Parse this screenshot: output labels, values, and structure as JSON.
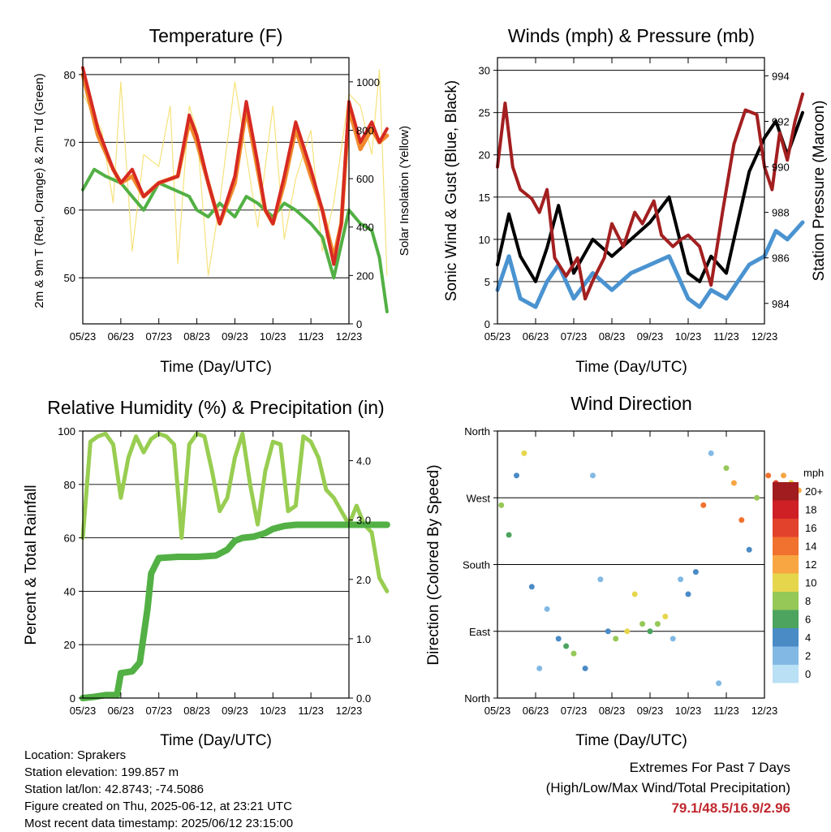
{
  "chart_data": [
    {
      "type": "line",
      "title": "Temperature (F)",
      "xlabel": "Time (Day/UTC)",
      "ylabel": "2m & 9m T (Red, Orange) & 2m Td (Green)",
      "ylabel_right": "Solar Insolation (Yellow)",
      "xticks": [
        "05/23",
        "06/23",
        "07/23",
        "08/23",
        "09/23",
        "10/23",
        "11/23",
        "12/23"
      ],
      "yticks": [
        50,
        60,
        70,
        80
      ],
      "yticks_right": [
        0,
        200,
        400,
        600,
        800,
        1000
      ],
      "ylim": [
        43.2,
        82.5
      ],
      "ylim_right": [
        0,
        1100
      ],
      "series": [
        {
          "color": "#d62a22",
          "x": [
            0,
            0.4,
            0.8,
            1,
            1.3,
            1.6,
            2,
            2.5,
            2.8,
            3,
            3.3,
            3.6,
            4,
            4.3,
            4.6,
            4.8,
            5,
            5.3,
            5.6,
            6,
            6.3,
            6.6,
            6.8,
            7,
            7.3,
            7.6,
            7.8,
            8
          ],
          "values": [
            81,
            72,
            66,
            64,
            66,
            62,
            64,
            65,
            74,
            71,
            64,
            58,
            65,
            76,
            67,
            60,
            58,
            65,
            73,
            66,
            60,
            52,
            58,
            76,
            70,
            73,
            70,
            72
          ]
        },
        {
          "color": "#f08a2b",
          "x": [
            0,
            0.4,
            0.8,
            1,
            1.3,
            1.6,
            2,
            2.5,
            2.8,
            3,
            3.3,
            3.6,
            4,
            4.3,
            4.6,
            4.8,
            5,
            5.3,
            5.6,
            6,
            6.3,
            6.6,
            6.8,
            7,
            7.3,
            7.6,
            7.8,
            8
          ],
          "values": [
            80,
            71,
            66,
            64,
            65,
            62,
            64,
            65,
            73,
            70,
            64,
            58,
            64,
            75,
            66,
            60,
            58,
            64,
            72,
            65,
            60,
            53,
            58,
            75,
            69,
            72,
            70,
            71
          ]
        },
        {
          "color": "#52b044",
          "x": [
            0,
            0.3,
            0.6,
            1,
            1.3,
            1.6,
            2,
            2.4,
            2.8,
            3,
            3.3,
            3.6,
            4,
            4.3,
            4.6,
            5,
            5.3,
            5.6,
            6,
            6.3,
            6.6,
            7,
            7.3,
            7.6,
            7.8,
            8
          ],
          "values": [
            63,
            66,
            65,
            64,
            62,
            60,
            64,
            63,
            62,
            60,
            59,
            61,
            59,
            62,
            61,
            59,
            61,
            60,
            58,
            56,
            50,
            60,
            58,
            57,
            53,
            45
          ]
        }
      ],
      "insolation": [
        {
          "x": [
            0,
            0.5,
            0.8,
            1,
            1.3,
            1.6,
            2,
            2.3,
            2.5,
            2.8,
            3,
            3.3,
            3.6,
            4,
            4.3,
            4.6,
            5,
            5.3,
            5.6,
            6,
            6.3,
            6.6,
            7,
            7.3,
            7.6,
            7.8,
            8
          ],
          "values": [
            950,
            800,
            500,
            1000,
            300,
            700,
            650,
            900,
            250,
            900,
            800,
            200,
            500,
            1000,
            700,
            400,
            900,
            350,
            600,
            800,
            300,
            500,
            950,
            900,
            700,
            1050,
            200
          ]
        }
      ]
    },
    {
      "type": "line",
      "title": "Winds (mph) & Pressure (mb)",
      "xlabel": "Time (Day/UTC)",
      "ylabel": "Sonic Wind & Gust (Blue, Black)",
      "ylabel_right": "Station Pressure (Maroon)",
      "xticks": [
        "05/23",
        "06/23",
        "07/23",
        "08/23",
        "09/23",
        "10/23",
        "11/23",
        "12/23"
      ],
      "yticks": [
        0,
        5,
        10,
        15,
        20,
        25,
        30
      ],
      "yticks_right": [
        984,
        986,
        988,
        990,
        992,
        994
      ],
      "ylim": [
        0,
        31.5
      ],
      "ylim_right": [
        983.1,
        994.8
      ],
      "series": [
        {
          "name": "Wind",
          "color": "#4a93d0",
          "x": [
            0,
            0.3,
            0.6,
            1,
            1.3,
            1.6,
            2,
            2.5,
            3,
            3.5,
            4,
            4.5,
            5,
            5.3,
            5.6,
            6,
            6.3,
            6.6,
            7,
            7.3,
            7.6,
            8
          ],
          "values": [
            4,
            8,
            3,
            2,
            5,
            7,
            3,
            6,
            4,
            6,
            7,
            8,
            3,
            2,
            4,
            3,
            5,
            7,
            8,
            11,
            10,
            12
          ]
        },
        {
          "name": "Gust",
          "color": "#000000",
          "x": [
            0,
            0.3,
            0.6,
            1,
            1.3,
            1.6,
            2,
            2.5,
            3,
            3.5,
            4,
            4.5,
            5,
            5.3,
            5.6,
            6,
            6.3,
            6.6,
            7,
            7.3,
            7.6,
            8
          ],
          "values": [
            7,
            13,
            8,
            5,
            9,
            14,
            6,
            10,
            8,
            10,
            12,
            15,
            6,
            5,
            8,
            6,
            12,
            18,
            22,
            24,
            20,
            25
          ]
        },
        {
          "name": "Pressure",
          "color": "#a31f20",
          "axis": "right",
          "x": [
            0,
            0.2,
            0.4,
            0.6,
            0.9,
            1.1,
            1.3,
            1.5,
            1.8,
            2.1,
            2.3,
            2.5,
            2.8,
            3,
            3.3,
            3.6,
            3.8,
            4.1,
            4.3,
            4.6,
            4.8,
            5,
            5.3,
            5.6,
            5.9,
            6.2,
            6.5,
            6.8,
            7,
            7.2,
            7.4,
            7.6,
            7.8,
            8
          ],
          "values": [
            990,
            992.8,
            990,
            989,
            988.6,
            988,
            989,
            986,
            985.2,
            986,
            984.2,
            985,
            986,
            987.5,
            986.5,
            988,
            987.5,
            988.5,
            987,
            986.5,
            986.8,
            987,
            986.5,
            984.8,
            988,
            991,
            992.5,
            992.3,
            990,
            989,
            991.5,
            990.3,
            992,
            993.2
          ]
        }
      ]
    },
    {
      "type": "line",
      "title": "Relative Humidity (%) & Precipitation (in)",
      "xlabel": "Time (Day/UTC)",
      "ylabel": "Percent & Total Rainfall",
      "xticks": [
        "05/23",
        "06/23",
        "07/23",
        "08/23",
        "09/23",
        "10/23",
        "11/23",
        "12/23"
      ],
      "yticks": [
        0,
        20,
        40,
        60,
        80,
        100
      ],
      "yticks_right": [
        "0.0",
        "1.0",
        "2.0",
        "3.0",
        "4.0"
      ],
      "ylim": [
        0,
        100
      ],
      "ylim_right": [
        0,
        4.5
      ],
      "series": [
        {
          "name": "RH",
          "color": "#98cd51",
          "x": [
            0,
            0.2,
            0.4,
            0.6,
            0.8,
            1,
            1.2,
            1.4,
            1.6,
            1.8,
            2,
            2.2,
            2.4,
            2.6,
            2.8,
            3,
            3.2,
            3.4,
            3.6,
            3.8,
            4,
            4.2,
            4.4,
            4.6,
            4.8,
            5,
            5.2,
            5.4,
            5.6,
            5.8,
            6,
            6.2,
            6.4,
            6.6,
            6.8,
            7,
            7.2,
            7.4,
            7.6,
            7.8,
            8
          ],
          "values": [
            60,
            96,
            98,
            99,
            95,
            75,
            90,
            98,
            92,
            97,
            99,
            98,
            95,
            60,
            95,
            99,
            98,
            85,
            70,
            75,
            90,
            99,
            80,
            65,
            85,
            96,
            95,
            70,
            72,
            98,
            96,
            90,
            78,
            75,
            70,
            65,
            72,
            65,
            62,
            45,
            40
          ]
        },
        {
          "name": "Precip",
          "color": "#52b044",
          "axis": "right",
          "x": [
            0,
            0.3,
            0.6,
            0.9,
            1,
            1.3,
            1.5,
            1.7,
            1.8,
            2,
            2.5,
            3,
            3.5,
            3.8,
            4,
            4.2,
            4.5,
            4.8,
            5,
            5.3,
            5.6,
            6,
            6.5,
            7,
            7.5,
            8
          ],
          "values": [
            0,
            0.02,
            0.05,
            0.05,
            0.42,
            0.45,
            0.6,
            1.5,
            2.1,
            2.36,
            2.38,
            2.38,
            2.4,
            2.5,
            2.65,
            2.7,
            2.72,
            2.78,
            2.85,
            2.9,
            2.92,
            2.92,
            2.92,
            2.92,
            2.92,
            2.92
          ]
        }
      ]
    },
    {
      "type": "scatter",
      "title": "Wind Direction",
      "xlabel": "Time (Day/UTC)",
      "ylabel": "Direction (Colored By Speed)",
      "xticks": [
        "05/23",
        "06/23",
        "07/23",
        "08/23",
        "09/23",
        "10/23",
        "11/23",
        "12/23"
      ],
      "yticks": [
        "North",
        "East",
        "South",
        "West",
        "North"
      ],
      "ylim": [
        0,
        360
      ],
      "legend_title": "mph",
      "legend": [
        "20+",
        "18",
        "16",
        "14",
        "12",
        "10",
        "8",
        "6",
        "4",
        "2",
        "0"
      ],
      "legend_colors": [
        "#a01c1e",
        "#cf2026",
        "#e2412b",
        "#f1712f",
        "#f7a642",
        "#e6d64c",
        "#95c857",
        "#4ca45e",
        "#4a8bc6",
        "#82b9e4",
        "#b9e0f5"
      ],
      "points": [
        {
          "x": 0.1,
          "y": 260,
          "s": 8
        },
        {
          "x": 0.3,
          "y": 220,
          "s": 6
        },
        {
          "x": 0.5,
          "y": 300,
          "s": 4
        },
        {
          "x": 0.7,
          "y": 330,
          "s": 10
        },
        {
          "x": 0.9,
          "y": 150,
          "s": 4
        },
        {
          "x": 1.1,
          "y": 40,
          "s": 3
        },
        {
          "x": 1.3,
          "y": 120,
          "s": 2
        },
        {
          "x": 1.6,
          "y": 80,
          "s": 5
        },
        {
          "x": 1.8,
          "y": 70,
          "s": 7
        },
        {
          "x": 2,
          "y": 60,
          "s": 8
        },
        {
          "x": 2.3,
          "y": 40,
          "s": 5
        },
        {
          "x": 2.5,
          "y": 300,
          "s": 2
        },
        {
          "x": 2.7,
          "y": 160,
          "s": 3
        },
        {
          "x": 2.9,
          "y": 90,
          "s": 4
        },
        {
          "x": 3.1,
          "y": 80,
          "s": 8
        },
        {
          "x": 3.4,
          "y": 90,
          "s": 10
        },
        {
          "x": 3.6,
          "y": 140,
          "s": 11
        },
        {
          "x": 3.8,
          "y": 100,
          "s": 9
        },
        {
          "x": 4,
          "y": 90,
          "s": 6
        },
        {
          "x": 4.2,
          "y": 100,
          "s": 8
        },
        {
          "x": 4.4,
          "y": 110,
          "s": 10
        },
        {
          "x": 4.6,
          "y": 80,
          "s": 2
        },
        {
          "x": 4.8,
          "y": 160,
          "s": 3
        },
        {
          "x": 5,
          "y": 140,
          "s": 4
        },
        {
          "x": 5.2,
          "y": 170,
          "s": 5
        },
        {
          "x": 5.4,
          "y": 260,
          "s": 14
        },
        {
          "x": 5.6,
          "y": 330,
          "s": 3
        },
        {
          "x": 5.8,
          "y": 20,
          "s": 2
        },
        {
          "x": 6,
          "y": 310,
          "s": 8
        },
        {
          "x": 6.2,
          "y": 290,
          "s": 12
        },
        {
          "x": 6.4,
          "y": 240,
          "s": 14
        },
        {
          "x": 6.6,
          "y": 200,
          "s": 5
        },
        {
          "x": 6.8,
          "y": 270,
          "s": 9
        },
        {
          "x": 7.1,
          "y": 300,
          "s": 14
        },
        {
          "x": 7.3,
          "y": 290,
          "s": 16
        },
        {
          "x": 7.5,
          "y": 300,
          "s": 12
        },
        {
          "x": 7.7,
          "y": 290,
          "s": 11
        },
        {
          "x": 7.9,
          "y": 280,
          "s": 13
        }
      ]
    }
  ],
  "info": {
    "location": "Location: Sprakers",
    "elevation": "Station elevation: 199.857 m",
    "latlon": "Station lat/lon: 42.8743; -74.5086",
    "created": "Figure created on Thu, 2025-06-12, at 23:21 UTC",
    "recent": "Most recent data timestamp: 2025/06/12 23:15:00"
  },
  "extremes": {
    "line1": "Extremes For Past 7 Days",
    "line2": "(High/Low/Max Wind/Total Precipitation)",
    "values": "79.1/48.5/16.9/2.96"
  },
  "colors": {
    "temp2m": "#d62a22",
    "temp9m": "#f08a2b",
    "dewpoint": "#52b044",
    "solar": "#f5df6e",
    "wind": "#4a93d0",
    "gust": "#000000",
    "pressure": "#a31f20",
    "rh": "#98cd51",
    "precip": "#52b044"
  }
}
